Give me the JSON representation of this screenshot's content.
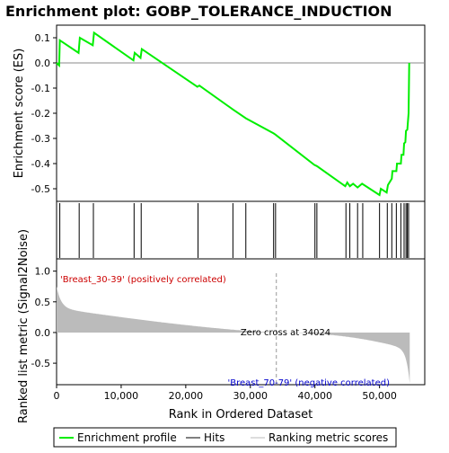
{
  "chart_data": {
    "type": "line",
    "title": "Enrichment plot: GOBP_TOLERANCE_INDUCTION",
    "es_panel": {
      "ylabel": "Enrichment score (ES)",
      "ylim": [
        -0.55,
        0.15
      ],
      "yticks": [
        "0.1",
        "0.0",
        "-0.1",
        "-0.2",
        "-0.3",
        "-0.4",
        "-0.5"
      ],
      "ytick_values": [
        0.1,
        0.0,
        -0.1,
        -0.2,
        -0.3,
        -0.4,
        -0.5
      ],
      "line_color": "#00ee00",
      "points": [
        [
          0,
          0.0
        ],
        [
          400,
          -0.01
        ],
        [
          500,
          0.09
        ],
        [
          3400,
          0.04
        ],
        [
          3600,
          0.1
        ],
        [
          5600,
          0.07
        ],
        [
          5800,
          0.12
        ],
        [
          11900,
          0.01
        ],
        [
          12100,
          0.04
        ],
        [
          13000,
          0.02
        ],
        [
          13200,
          0.055
        ],
        [
          21800,
          -0.095
        ],
        [
          22100,
          -0.09
        ],
        [
          27300,
          -0.185
        ],
        [
          29300,
          -0.22
        ],
        [
          33600,
          -0.28
        ],
        [
          33900,
          -0.285
        ],
        [
          39900,
          -0.405
        ],
        [
          40300,
          -0.41
        ],
        [
          44700,
          -0.49
        ],
        [
          45000,
          -0.475
        ],
        [
          45400,
          -0.49
        ],
        [
          45900,
          -0.48
        ],
        [
          46600,
          -0.495
        ],
        [
          47300,
          -0.48
        ],
        [
          50000,
          -0.525
        ],
        [
          50200,
          -0.5
        ],
        [
          51100,
          -0.515
        ],
        [
          51300,
          -0.485
        ],
        [
          51900,
          -0.46
        ],
        [
          52000,
          -0.43
        ],
        [
          52600,
          -0.43
        ],
        [
          52700,
          -0.4
        ],
        [
          53300,
          -0.4
        ],
        [
          53400,
          -0.365
        ],
        [
          53700,
          -0.365
        ],
        [
          53800,
          -0.32
        ],
        [
          54000,
          -0.315
        ],
        [
          54100,
          -0.27
        ],
        [
          54300,
          -0.265
        ],
        [
          54500,
          -0.2
        ],
        [
          54550,
          -0.09
        ],
        [
          54600,
          0.0
        ]
      ]
    },
    "hits": [
      500,
      3500,
      5700,
      12000,
      13100,
      21900,
      27300,
      29300,
      33600,
      33900,
      40000,
      40300,
      44800,
      45400,
      46600,
      47400,
      50000,
      51200,
      51900,
      52600,
      53300,
      53800,
      54100,
      54300,
      54500
    ],
    "rank_panel": {
      "ylabel": "Ranked list metric (Signal2Noise)",
      "xlabel": "Rank in Ordered Dataset",
      "ylim": [
        -0.85,
        1.2
      ],
      "yticks": [
        "1.0",
        "0.5",
        "0.0",
        "-0.5"
      ],
      "ytick_values": [
        1.0,
        0.5,
        0.0,
        -0.5
      ],
      "xlim": [
        0,
        57000
      ],
      "xticks": [
        "0",
        "10,000",
        "20,000",
        "30,000",
        "40,000",
        "50,000"
      ],
      "xtick_values": [
        0,
        10000,
        20000,
        30000,
        40000,
        50000
      ],
      "total_genes": 54675,
      "zero_cross": 34024,
      "zero_cross_label": "Zero cross at 34024",
      "positive_label": "'Breast_30-39' (positively correlated)",
      "negative_label": "'Breast_70-79' (negative correlated)",
      "positive_color": "#cc0000",
      "negative_color": "#0000cc"
    },
    "legend": {
      "items": [
        "Enrichment profile",
        "Hits",
        "Ranking metric scores"
      ],
      "colors": [
        "#00ee00",
        "#000000",
        "#bbbbbb"
      ],
      "placement": "bottom"
    }
  }
}
